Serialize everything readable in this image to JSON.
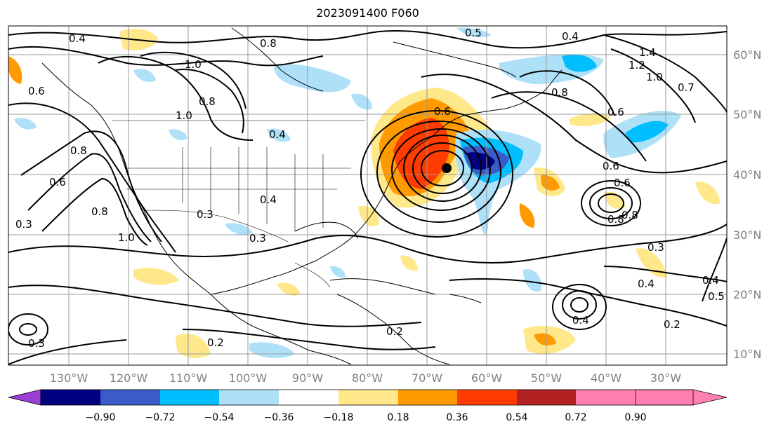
{
  "title": "2023091400 F060",
  "lon_ticks": [
    "130°W",
    "120°W",
    "110°W",
    "100°W",
    "90°W",
    "80°W",
    "70°W",
    "60°W",
    "50°W",
    "40°W",
    "30°W"
  ],
  "lat_ticks": [
    "60°N",
    "50°N",
    "40°N",
    "30°N",
    "20°N",
    "10°N"
  ],
  "colorbar": {
    "ticks": [
      "−0.90",
      "−0.72",
      "−0.54",
      "−0.36",
      "−0.18",
      "0.18",
      "0.36",
      "0.54",
      "0.72",
      "0.90"
    ],
    "colors": [
      "#9a3fd6",
      "#000080",
      "#3a5bc8",
      "#00bfff",
      "#aee0f8",
      "#ffffff",
      "#ffe88a",
      "#ff9b00",
      "#ff3c00",
      "#b22222",
      "#ff80b0"
    ]
  },
  "contour_labels": [
    "0.4",
    "0.8",
    "0.5",
    "0.4",
    "1.4",
    "1.2",
    "1.0",
    "0.7",
    "0.6",
    "1.0",
    "0.6",
    "0.8",
    "0.8",
    "1.0",
    "0.8",
    "0.4",
    "0.6",
    "0.8",
    "0.6",
    "0.3",
    "0.8",
    "1.0",
    "0.3",
    "0.4",
    "0.3",
    "0.6",
    "0.6",
    "0.8",
    "0.3",
    "0.4",
    "0.2",
    "0.4",
    "0.2",
    "0.5",
    "0.4",
    "0.2",
    "0.3"
  ],
  "colors": {
    "axis": "#000000",
    "grid": "#999999",
    "tick": "#808080"
  }
}
